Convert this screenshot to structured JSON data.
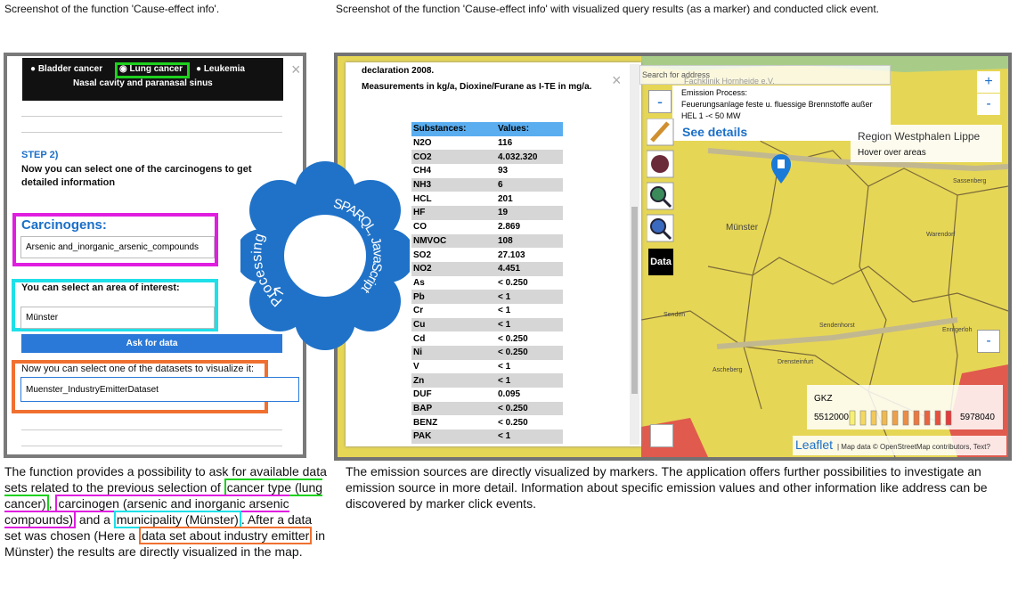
{
  "captions": {
    "left_top": "Screenshot of the function 'Cause-effect info'.",
    "right_top": "Screenshot of the function 'Cause-effect info' with visualized query results (as a marker) and conducted click event."
  },
  "left_panel": {
    "cancer_types": [
      "Bladder cancer",
      "Lung cancer",
      "Leukemia",
      "Nasal cavity and paranasal sinus"
    ],
    "close": "×",
    "step": "STEP 2)",
    "instruction": "Now you can select one of the carcinogens to get detailed information",
    "carcinogens_label": "Carcinogens:",
    "carcinogen_value": "Arsenic and_inorganic_arsenic_compounds",
    "area_label": "You can select an area of interest:",
    "area_value": "Münster",
    "button": "Ask for data",
    "dataset_label": "Now you can select one of the datasets to visualize it:",
    "dataset_value": "Muenster_IndustryEmitterDataset"
  },
  "process": {
    "left": "Processing",
    "right": "SPARQL, JavaScript"
  },
  "popup": {
    "lines": [
      "declaration 2008.",
      "Measurements in kg/a, Dioxine/Furane as I-TE in mg/a."
    ],
    "close": "×",
    "table": {
      "header": [
        "Substances:",
        "Values:"
      ],
      "rows": [
        [
          "N2O",
          "116"
        ],
        [
          "CO2",
          "4.032.320"
        ],
        [
          "CH4",
          "93"
        ],
        [
          "NH3",
          "6"
        ],
        [
          "HCL",
          "201"
        ],
        [
          "HF",
          "19"
        ],
        [
          "CO",
          "2.869"
        ],
        [
          "NMVOC",
          "108"
        ],
        [
          "SO2",
          "27.103"
        ],
        [
          "NO2",
          "4.451"
        ],
        [
          "As",
          "< 0.250"
        ],
        [
          "Pb",
          "< 1"
        ],
        [
          "Cr",
          "< 1"
        ],
        [
          "Cu",
          "< 1"
        ],
        [
          "Cd",
          "< 0.250"
        ],
        [
          "Ni",
          "< 0.250"
        ],
        [
          "V",
          "< 1"
        ],
        [
          "Zn",
          "< 1"
        ],
        [
          "DUF",
          "0.095"
        ],
        [
          "BAP",
          "< 0.250"
        ],
        [
          "BENZ",
          "< 0.250"
        ],
        [
          "PAK",
          "< 1"
        ]
      ]
    }
  },
  "map": {
    "search": "Search for address",
    "place": "Fachklinik Hornheide e.V.",
    "marker_info": [
      "Emission Process:",
      "Feuerungsanlage feste u. fluessige Brennstoffe außer",
      "HEL 1 -< 50 MW"
    ],
    "see_details": "See details",
    "region": "Region Westphalen Lippe",
    "hover": "Hover over areas",
    "data_button": "Data",
    "zoom_in": "+",
    "zoom_out": "-",
    "towns": [
      "Münster",
      "Senden",
      "Sendenhorst",
      "Drensteinfurt",
      "Ascheberg",
      "Warendorf",
      "Sassenberg",
      "Ennigerloh"
    ],
    "legend": {
      "title": "GKZ",
      "min": "5512000",
      "max": "5978040"
    },
    "attribution_brand": "Leaflet",
    "attribution": "| Map data © OpenStreetMap contributors, Text?"
  },
  "descriptions": {
    "left": [
      "The function provides a possibility to ask for available data sets related to the previous selection of ",
      "cancer type (lung cancer)",
      ", ",
      "carcinogen (arsenic and inorganic arsenic compounds)",
      " and a ",
      "municipality (Münster)",
      ". After a data set was chosen  (Here a ",
      "data set about industry emitter",
      " in Münster) the results are directly visualized in the map."
    ],
    "right": "The emission sources are directly visualized by markers. The application offers further possibilities to investigate an emission source in more detail. Information about specific emission values and other information like address can be discovered by marker click events."
  }
}
